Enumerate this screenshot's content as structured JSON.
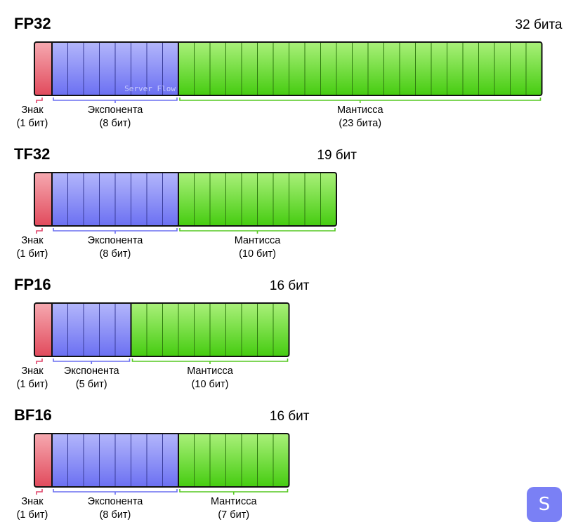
{
  "colors": {
    "sign": "#e86775",
    "exponent": "#8a8ff8",
    "mantissa": "#66dd22",
    "sign_bracket": "#e0456a",
    "exponent_bracket": "#6a6ff0",
    "mantissa_bracket": "#55c820"
  },
  "watermark": "Server Flow",
  "logo_letter": "S",
  "formats": [
    {
      "name": "FP32",
      "total": "32 бита",
      "sign_bits": 1,
      "exponent_bits": 8,
      "mantissa_bits": 23,
      "sign_label": [
        "Знак",
        "(1 бит)"
      ],
      "exponent_label": [
        "Экспонента",
        "(8 бит)"
      ],
      "mantissa_label": [
        "Мантисса",
        "(23 бита)"
      ]
    },
    {
      "name": "TF32",
      "total": "19 бит",
      "sign_bits": 1,
      "exponent_bits": 8,
      "mantissa_bits": 10,
      "sign_label": [
        "Знак",
        "(1 бит)"
      ],
      "exponent_label": [
        "Экспонента",
        "(8 бит)"
      ],
      "mantissa_label": [
        "Мантисса",
        "(10 бит)"
      ]
    },
    {
      "name": "FP16",
      "total": "16 бит",
      "sign_bits": 1,
      "exponent_bits": 5,
      "mantissa_bits": 10,
      "sign_label": [
        "Знак",
        "(1 бит)"
      ],
      "exponent_label": [
        "Экспонента",
        "(5 бит)"
      ],
      "mantissa_label": [
        "Мантисса",
        "(10 бит)"
      ]
    },
    {
      "name": "BF16",
      "total": "16 бит",
      "sign_bits": 1,
      "exponent_bits": 8,
      "mantissa_bits": 7,
      "sign_label": [
        "Знак",
        "(1 бит)"
      ],
      "exponent_label": [
        "Экспонента",
        "(8 бит)"
      ],
      "mantissa_label": [
        "Мантисса",
        "(7 бит)"
      ]
    }
  ]
}
